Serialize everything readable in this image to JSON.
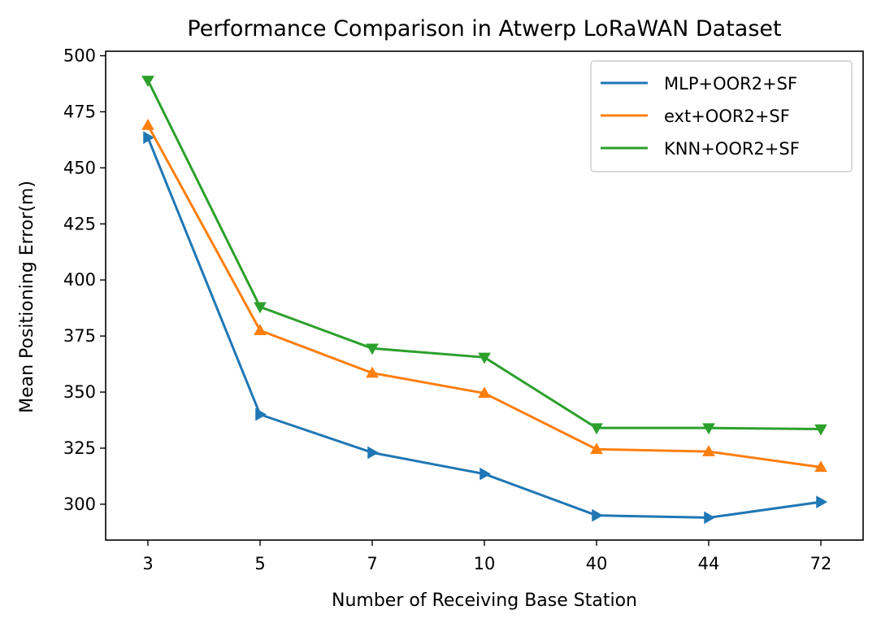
{
  "chart_data": {
    "type": "line",
    "title": "Performance Comparison in Atwerp LoRaWAN Dataset",
    "xlabel": "Number of Receiving Base Station",
    "ylabel": "Mean Positioning Error(m)",
    "categories": [
      "3",
      "5",
      "7",
      "10",
      "40",
      "44",
      "72"
    ],
    "ylim": [
      284,
      502
    ],
    "yticks": [
      300,
      325,
      350,
      375,
      400,
      425,
      450,
      475,
      500
    ],
    "grid": false,
    "legend_position": "top-right",
    "series": [
      {
        "name": "MLP+OOR2+SF",
        "color": "#1f77b4",
        "marker": "triangle-right",
        "values": [
          463.5,
          340,
          323,
          313.5,
          295,
          294,
          301
        ]
      },
      {
        "name": "ext+OOR2+SF",
        "color": "#ff7f0e",
        "marker": "triangle-up",
        "values": [
          469,
          377.5,
          358.5,
          349.5,
          324.5,
          323.5,
          316.5
        ]
      },
      {
        "name": "KNN+OOR2+SF",
        "color": "#2ca02c",
        "marker": "triangle-down",
        "values": [
          489,
          388,
          369.5,
          365.5,
          334,
          334,
          333.5
        ]
      }
    ]
  }
}
